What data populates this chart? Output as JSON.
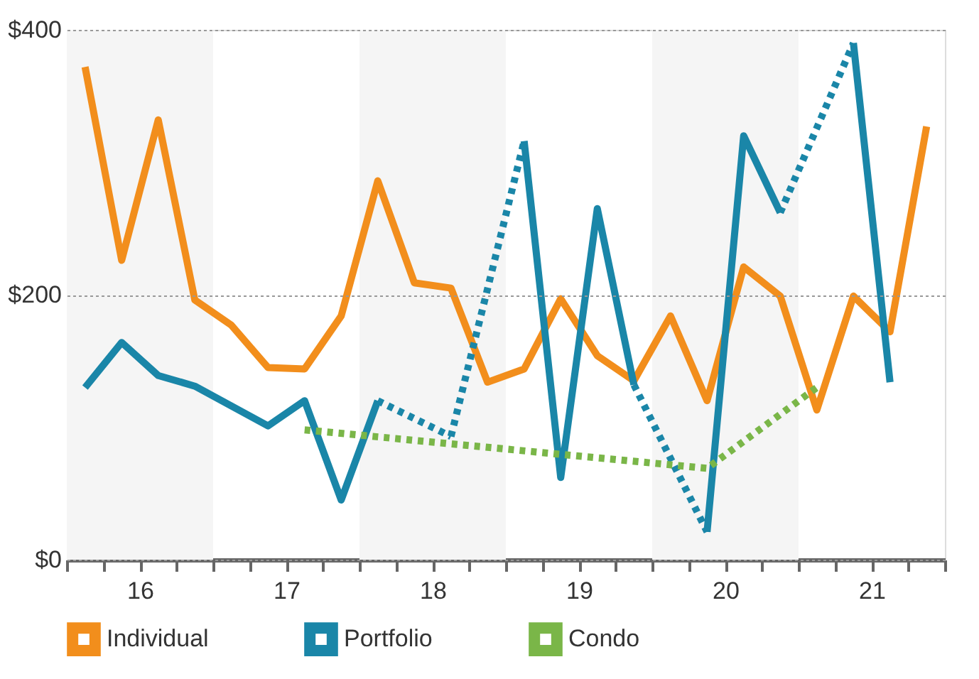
{
  "chart_data": {
    "type": "line",
    "x": [
      16.125,
      16.375,
      16.625,
      16.875,
      17.125,
      17.375,
      17.625,
      17.875,
      18.125,
      18.375,
      18.625,
      18.875,
      19.125,
      19.375,
      19.625,
      19.875,
      20.125,
      20.375,
      20.625,
      20.875,
      21.125,
      21.375,
      21.625,
      21.875
    ],
    "series": [
      {
        "name": "Individual",
        "color": "#f28e1c",
        "line_style": "solid",
        "values": [
          372,
          226,
          332,
          196,
          177,
          145,
          144,
          184,
          286,
          209,
          205,
          134,
          144,
          197,
          154,
          135,
          184,
          120,
          221,
          199,
          113,
          199,
          172,
          327
        ]
      },
      {
        "name": "Portfolio",
        "color": "#1a86a8",
        "line_style": "solid",
        "values": [
          130,
          164,
          139,
          131,
          116,
          101,
          120,
          45,
          120,
          null,
          93,
          null,
          316,
          62,
          265,
          132,
          null,
          21,
          320,
          262,
          null,
          390,
          134,
          null
        ]
      },
      {
        "name": "Condo",
        "color": "#7ab648",
        "line_style": "dotted",
        "values": [
          null,
          null,
          null,
          null,
          null,
          null,
          98,
          null,
          null,
          null,
          null,
          null,
          null,
          null,
          null,
          null,
          null,
          69,
          null,
          null,
          130,
          null,
          null,
          null
        ]
      }
    ],
    "xlim": [
      16,
      22
    ],
    "xticks": [
      {
        "value": 16,
        "label": null
      },
      {
        "value": 16.25,
        "label": null
      },
      {
        "value": 16.5,
        "label": "16"
      },
      {
        "value": 16.75,
        "label": null
      },
      {
        "value": 17,
        "label": null
      },
      {
        "value": 17.25,
        "label": null
      },
      {
        "value": 17.5,
        "label": "17"
      },
      {
        "value": 17.75,
        "label": null
      },
      {
        "value": 18,
        "label": null
      },
      {
        "value": 18.25,
        "label": null
      },
      {
        "value": 18.5,
        "label": "18"
      },
      {
        "value": 18.75,
        "label": null
      },
      {
        "value": 19,
        "label": null
      },
      {
        "value": 19.25,
        "label": null
      },
      {
        "value": 19.5,
        "label": "19"
      },
      {
        "value": 19.75,
        "label": null
      },
      {
        "value": 20,
        "label": null
      },
      {
        "value": 20.25,
        "label": null
      },
      {
        "value": 20.5,
        "label": "20"
      },
      {
        "value": 20.75,
        "label": null
      },
      {
        "value": 21,
        "label": null
      },
      {
        "value": 21.25,
        "label": null
      },
      {
        "value": 21.5,
        "label": "21"
      },
      {
        "value": 21.75,
        "label": null
      },
      {
        "value": 22,
        "label": null
      }
    ],
    "ylim": [
      0,
      400
    ],
    "yticks": [
      {
        "value": 0,
        "label": "$0"
      },
      {
        "value": 200,
        "label": "$200"
      },
      {
        "value": 400,
        "label": "$400"
      }
    ],
    "grid": "y",
    "legend": "bottom",
    "marker": "none",
    "bands": [
      {
        "axis": "x",
        "from": 16,
        "to": 17,
        "color": "#f5f5f5"
      },
      {
        "axis": "x",
        "from": 18,
        "to": 19,
        "color": "#f5f5f5"
      },
      {
        "axis": "x",
        "from": 20,
        "to": 21,
        "color": "#f5f5f5"
      }
    ]
  }
}
